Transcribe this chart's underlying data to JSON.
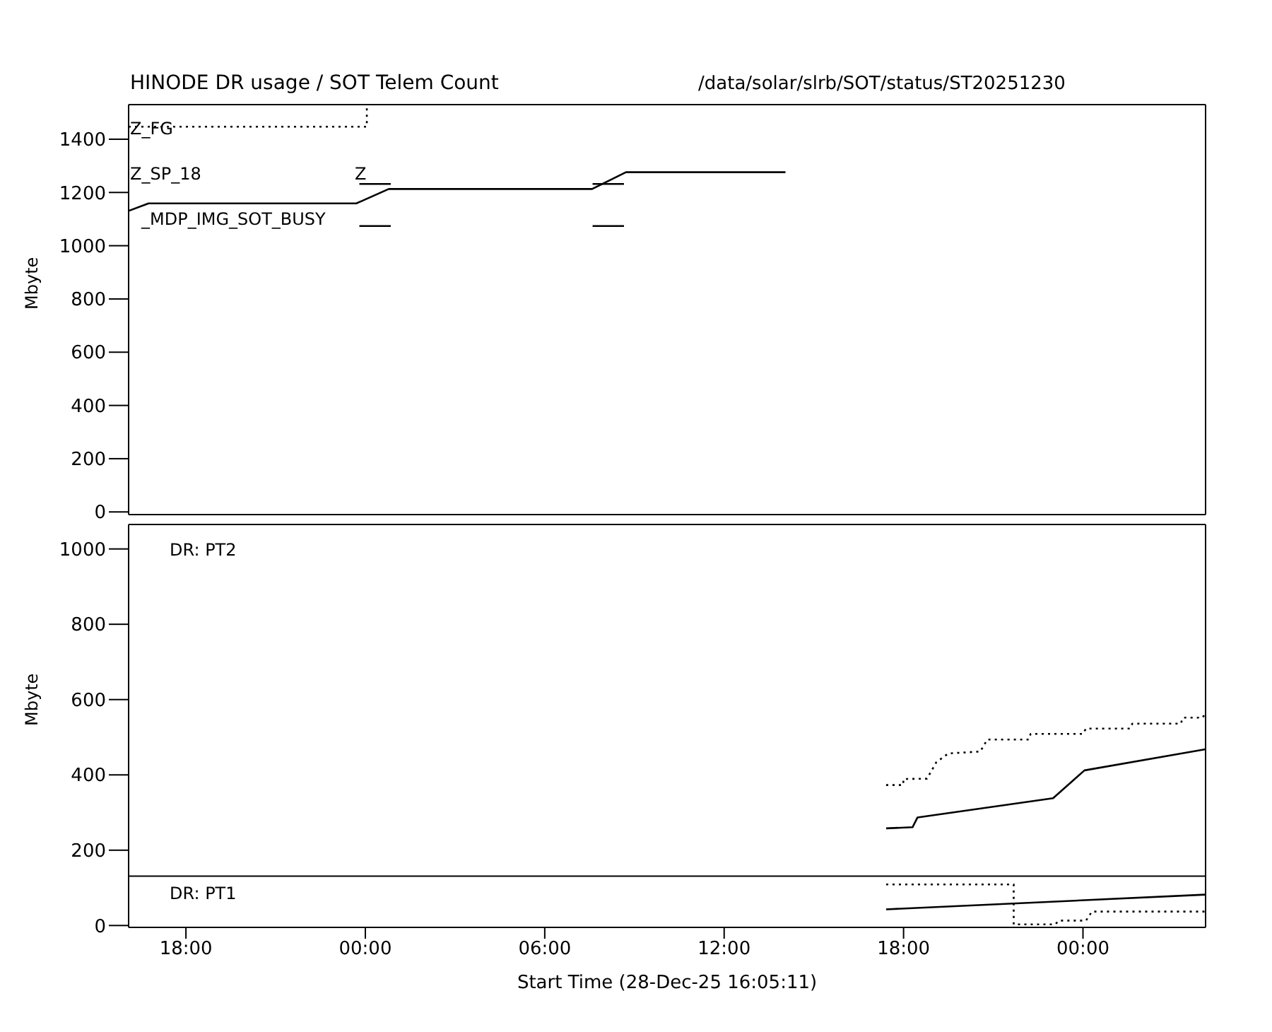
{
  "chart_data": [
    {
      "type": "line",
      "title": "HINODE DR usage / SOT Telem Count",
      "subtitle": "/data/solar/slrb/SOT/status/ST20251230",
      "ylabel": "Mbyte",
      "annotations": [
        "Z_FG",
        "Z_SP_18",
        "_MDP_IMG_SOT_BUSY",
        "Z"
      ],
      "xlim": [
        "2025-12-28T16:05",
        "2025-12-30T04:06"
      ],
      "xticks": [
        {
          "value": "2025-12-28T18:00",
          "label": null
        },
        {
          "value": "2025-12-29T00:00",
          "label": null
        },
        {
          "value": "2025-12-29T06:00",
          "label": null
        },
        {
          "value": "2025-12-29T12:00",
          "label": null
        },
        {
          "value": "2025-12-29T18:00",
          "label": null
        },
        {
          "value": "2025-12-30T00:00",
          "label": null
        }
      ],
      "ylim": [
        -10,
        1530
      ],
      "yticks": [
        0,
        200,
        400,
        600,
        800,
        1000,
        1200,
        1400
      ],
      "tick_labels": "y",
      "series": [
        {
          "color": "#000000",
          "line_style": "dotted",
          "x": [
            "2025-12-28T16:05",
            "2025-12-29T00:03",
            "2025-12-29T00:03"
          ],
          "values": [
            1447,
            1447,
            1525
          ]
        },
        {
          "color": "#000000",
          "line_style": "solid",
          "x": [
            "2025-12-28T16:05",
            "2025-12-28T16:45",
            "2025-12-28T23:42",
            "2025-12-29T00:47",
            "2025-12-29T07:35",
            "2025-12-29T08:43",
            "2025-12-29T14:03"
          ],
          "values": [
            1131,
            1159,
            1159,
            1213,
            1213,
            1276,
            1276
          ]
        },
        {
          "color": "#000000",
          "line_style": "solid",
          "x": [
            "2025-12-28T23:48",
            "2025-12-29T00:51"
          ],
          "values": [
            1232,
            1232
          ]
        },
        {
          "color": "#000000",
          "line_style": "solid",
          "x": [
            "2025-12-29T07:36",
            "2025-12-29T08:39"
          ],
          "values": [
            1232,
            1232
          ]
        },
        {
          "color": "#000000",
          "line_style": "solid",
          "x": [
            "2025-12-28T23:48",
            "2025-12-29T00:51"
          ],
          "values": [
            1074,
            1074
          ]
        },
        {
          "color": "#000000",
          "line_style": "solid",
          "x": [
            "2025-12-29T07:36",
            "2025-12-29T08:39"
          ],
          "values": [
            1074,
            1074
          ]
        }
      ]
    },
    {
      "type": "line",
      "xlabel": "Start Time (28-Dec-25 16:05:11)",
      "ylabel": "Mbyte",
      "annotations": [
        "DR: PT2",
        "DR: PT1"
      ],
      "xlim": [
        "2025-12-28T16:05",
        "2025-12-30T04:06"
      ],
      "xticks": [
        {
          "value": "2025-12-28T18:00",
          "label": "18:00"
        },
        {
          "value": "2025-12-29T00:00",
          "label": "00:00"
        },
        {
          "value": "2025-12-29T06:00",
          "label": "06:00"
        },
        {
          "value": "2025-12-29T12:00",
          "label": "12:00"
        },
        {
          "value": "2025-12-29T18:00",
          "label": "18:00"
        },
        {
          "value": "2025-12-30T00:00",
          "label": "00:00"
        }
      ],
      "ylim": [
        -5,
        1065
      ],
      "yticks": [
        0,
        200,
        400,
        600,
        800,
        1000
      ],
      "ref_lines": [
        {
          "axis": "y",
          "value": 131,
          "color": "#000000"
        }
      ],
      "series": [
        {
          "color": "#000000",
          "line_style": "dotted",
          "x": [
            "2025-12-29T17:25",
            "2025-12-29T17:59",
            "2025-12-29T18:00",
            "2025-12-29T18:47",
            "2025-12-29T19:06",
            "2025-12-29T19:30",
            "2025-12-29T20:34",
            "2025-12-29T20:48",
            "2025-12-29T22:11",
            "2025-12-29T22:15",
            "2025-12-30T00:00",
            "2025-12-30T00:06",
            "2025-12-30T01:34",
            "2025-12-30T01:39",
            "2025-12-30T03:16",
            "2025-12-30T03:21",
            "2025-12-30T04:00",
            "2025-12-30T04:06"
          ],
          "values": [
            373,
            373,
            389,
            390,
            434,
            457,
            462,
            494,
            494,
            509,
            509,
            523,
            523,
            536,
            536,
            552,
            552,
            564
          ]
        },
        {
          "color": "#000000",
          "line_style": "solid",
          "x": [
            "2025-12-29T17:25",
            "2025-12-29T18:18",
            "2025-12-29T18:28",
            "2025-12-29T23:00",
            "2025-12-30T00:03",
            "2025-12-30T04:06"
          ],
          "values": [
            258,
            261,
            287,
            338,
            412,
            468
          ]
        },
        {
          "color": "#000000",
          "line_style": "dotted",
          "x": [
            "2025-12-29T17:25",
            "2025-12-29T21:41",
            "2025-12-29T21:41",
            "2025-12-29T23:04",
            "2025-12-29T23:12",
            "2025-12-30T00:06",
            "2025-12-30T00:18",
            "2025-12-30T04:06"
          ],
          "values": [
            109,
            109,
            3,
            3,
            13,
            13,
            37,
            37
          ]
        },
        {
          "color": "#000000",
          "line_style": "solid",
          "x": [
            "2025-12-29T17:25",
            "2025-12-30T04:06"
          ],
          "values": [
            43,
            82
          ]
        }
      ]
    }
  ]
}
